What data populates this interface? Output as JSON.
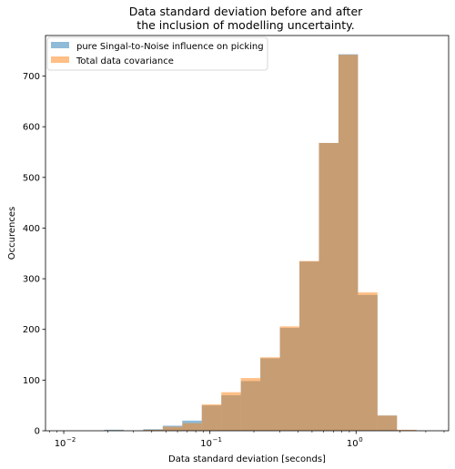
{
  "chart_data": {
    "type": "bar",
    "title_line1": "Data standard deviation before and after",
    "title_line2": "the inclusion of modelling uncertainty.",
    "xlabel": "Data standard deviation [seconds]",
    "ylabel": "Occurences",
    "xscale": "log",
    "xlim": [
      0.0075,
      4.3
    ],
    "ylim": [
      0,
      780
    ],
    "xticks": [
      {
        "value": 0.01,
        "base": "10",
        "exp": "−2"
      },
      {
        "value": 0.1,
        "base": "10",
        "exp": "−1"
      },
      {
        "value": 1,
        "base": "10",
        "exp": "0"
      }
    ],
    "yticks": [
      "0",
      "100",
      "200",
      "300",
      "400",
      "500",
      "600",
      "700"
    ],
    "legend_position": "top-left",
    "bin_edges": [
      0.0102,
      0.0139,
      0.0189,
      0.0257,
      0.035,
      0.0476,
      0.0647,
      0.088,
      0.1197,
      0.1628,
      0.2214,
      0.3012,
      0.4097,
      0.5572,
      0.7578,
      1.0307,
      1.4018,
      1.9066,
      2.5931,
      3.5268
    ],
    "series": [
      {
        "name": "pure Singal-to-Noise influence on picking",
        "color": "#1f77b4",
        "opacity": 0.5,
        "values": [
          0,
          0,
          2,
          0,
          3,
          10,
          20,
          50,
          70,
          98,
          143,
          203,
          334,
          568,
          743,
          268,
          30,
          1,
          0
        ]
      },
      {
        "name": "Total data covariance",
        "color": "#ff7f0e",
        "opacity": 0.5,
        "values": [
          0,
          0,
          1,
          0,
          2,
          8,
          15,
          52,
          76,
          104,
          145,
          206,
          335,
          568,
          742,
          273,
          30,
          2,
          0
        ]
      }
    ]
  }
}
